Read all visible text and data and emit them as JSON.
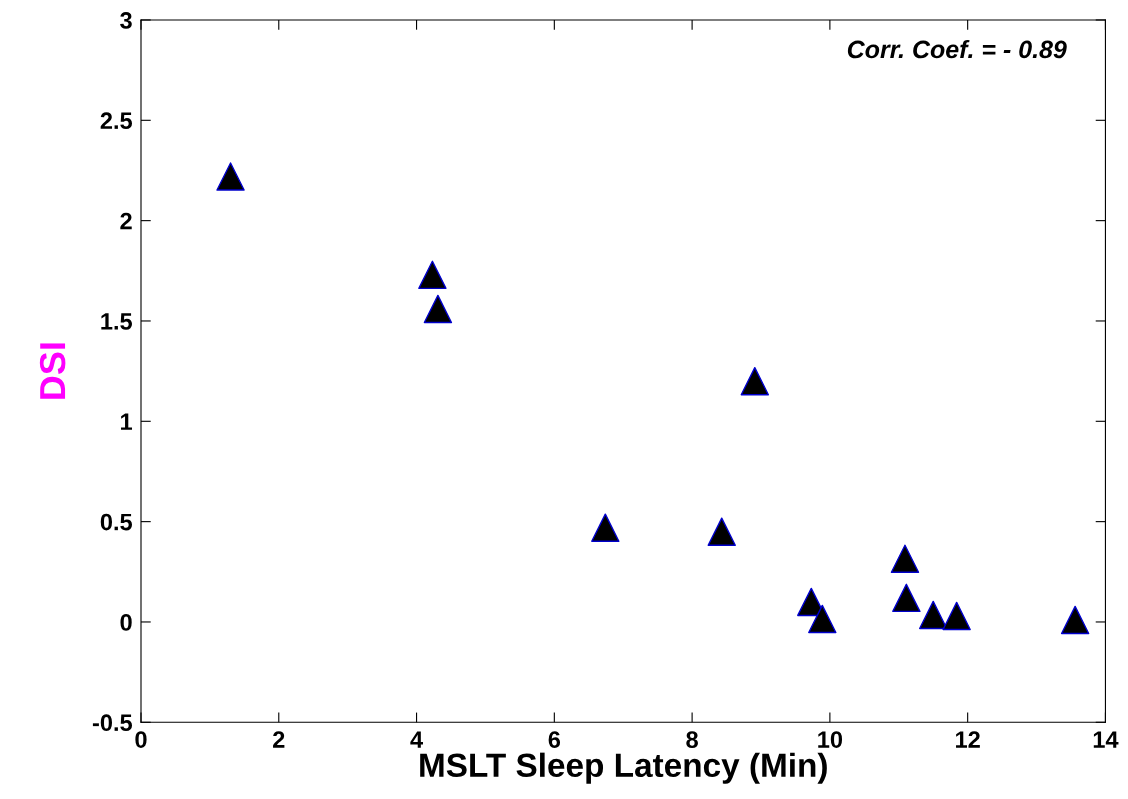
{
  "chart_data": {
    "type": "scatter",
    "xlabel": "MSLT Sleep Latency (Min)",
    "ylabel": "DSI",
    "annotations": [
      "Corr. Coef. = - 0.89"
    ],
    "x": [
      1.3,
      4.23,
      4.31,
      8.91,
      6.74,
      8.43,
      9.73,
      9.89,
      11.09,
      11.11,
      11.5,
      11.84,
      13.56
    ],
    "series": [
      {
        "color": "#000000",
        "values": [
          2.22,
          1.73,
          1.56,
          1.2,
          0.47,
          0.45,
          0.1,
          0.015,
          0.315,
          0.12,
          0.035,
          0.03,
          0.01
        ]
      }
    ],
    "marker": "triangle",
    "xlim": [
      0,
      14
    ],
    "xticks": [
      0,
      2,
      4,
      6,
      8,
      10,
      12,
      14
    ],
    "ylim": [
      -0.5,
      3
    ],
    "yticks": [
      -0.5,
      0,
      0.5,
      1,
      1.5,
      2,
      2.5,
      3
    ],
    "grid": false,
    "legend": false
  }
}
